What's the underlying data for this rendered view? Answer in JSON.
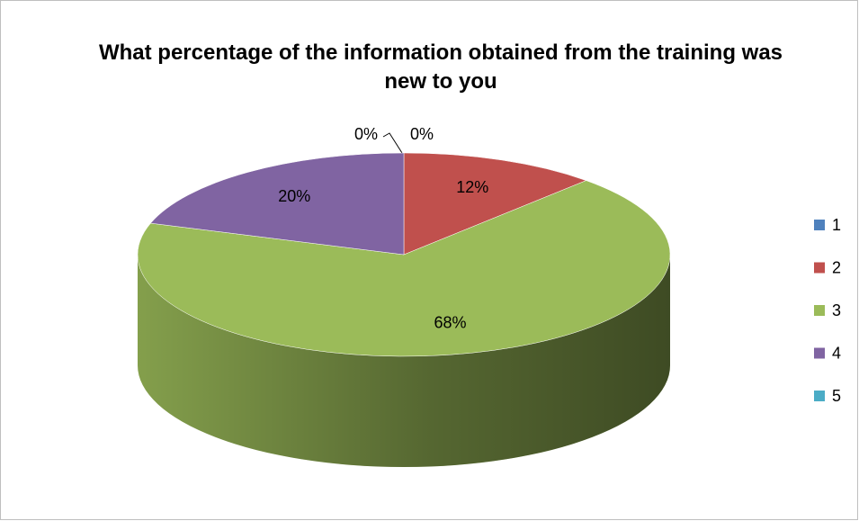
{
  "chart_data": {
    "type": "pie",
    "title": "What percentage of the information obtained from the training was new to you",
    "categories": [
      "1",
      "2",
      "3",
      "4",
      "5"
    ],
    "values": [
      0,
      12,
      68,
      20,
      0
    ],
    "value_labels": [
      "0%",
      "12%",
      "68%",
      "20%",
      "0%"
    ],
    "colors": [
      "#4f81bd",
      "#c0504d",
      "#9bbb59",
      "#8064a2",
      "#4bacc6"
    ],
    "legend": "right"
  }
}
